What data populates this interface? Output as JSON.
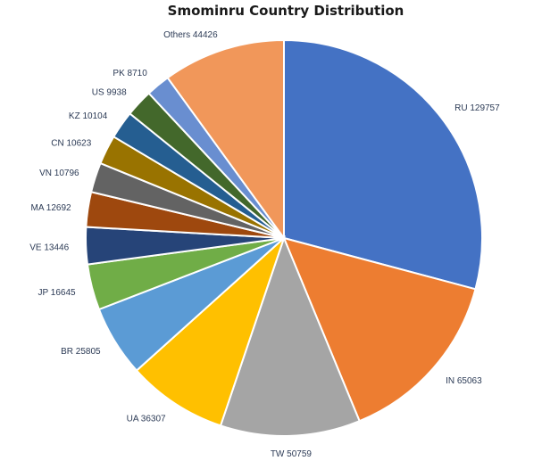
{
  "chart_data": {
    "type": "pie",
    "title": "Smominru Country Distribution",
    "slices": [
      {
        "label": "RU",
        "value": 129757,
        "color": "#4472c4"
      },
      {
        "label": "IN",
        "value": 65063,
        "color": "#ed7d31"
      },
      {
        "label": "TW",
        "value": 50759,
        "color": "#a5a5a5"
      },
      {
        "label": "UA",
        "value": 36307,
        "color": "#ffc000"
      },
      {
        "label": "BR",
        "value": 25805,
        "color": "#5b9bd5"
      },
      {
        "label": "JP",
        "value": 16645,
        "color": "#70ad47"
      },
      {
        "label": "VE",
        "value": 13446,
        "color": "#264478"
      },
      {
        "label": "MA",
        "value": 12692,
        "color": "#9e480e"
      },
      {
        "label": "VN",
        "value": 10796,
        "color": "#636363"
      },
      {
        "label": "CN",
        "value": 10623,
        "color": "#997300"
      },
      {
        "label": "KZ",
        "value": 10104,
        "color": "#255e91"
      },
      {
        "label": "US",
        "value": 9938,
        "color": "#43682b"
      },
      {
        "label": "PK",
        "value": 8710,
        "color": "#698ed0"
      },
      {
        "label": "Others",
        "value": 44426,
        "color": "#f1975a"
      }
    ]
  }
}
